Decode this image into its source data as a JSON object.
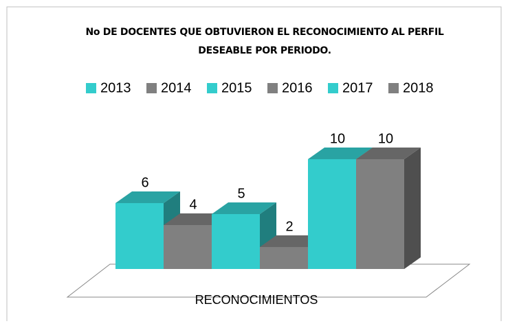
{
  "chart_data": {
    "type": "bar3d",
    "title": "No DE DOCENTES QUE OBTUVIERON EL RECONOCIMIENTO AL PERFIL DESEABLE POR PERIODO.",
    "categories": [
      "RECONOCIMIENTOS"
    ],
    "legend": "top",
    "series": [
      {
        "name": "2013",
        "color": "#33cccc",
        "values": [
          6
        ]
      },
      {
        "name": "2014",
        "color": "#808080",
        "values": [
          4
        ]
      },
      {
        "name": "2015",
        "color": "#33cccc",
        "values": [
          5
        ]
      },
      {
        "name": "2016",
        "color": "#808080",
        "values": [
          2
        ]
      },
      {
        "name": "2017",
        "color": "#33cccc",
        "values": [
          10
        ]
      },
      {
        "name": "2018",
        "color": "#808080",
        "values": [
          10
        ]
      }
    ]
  }
}
